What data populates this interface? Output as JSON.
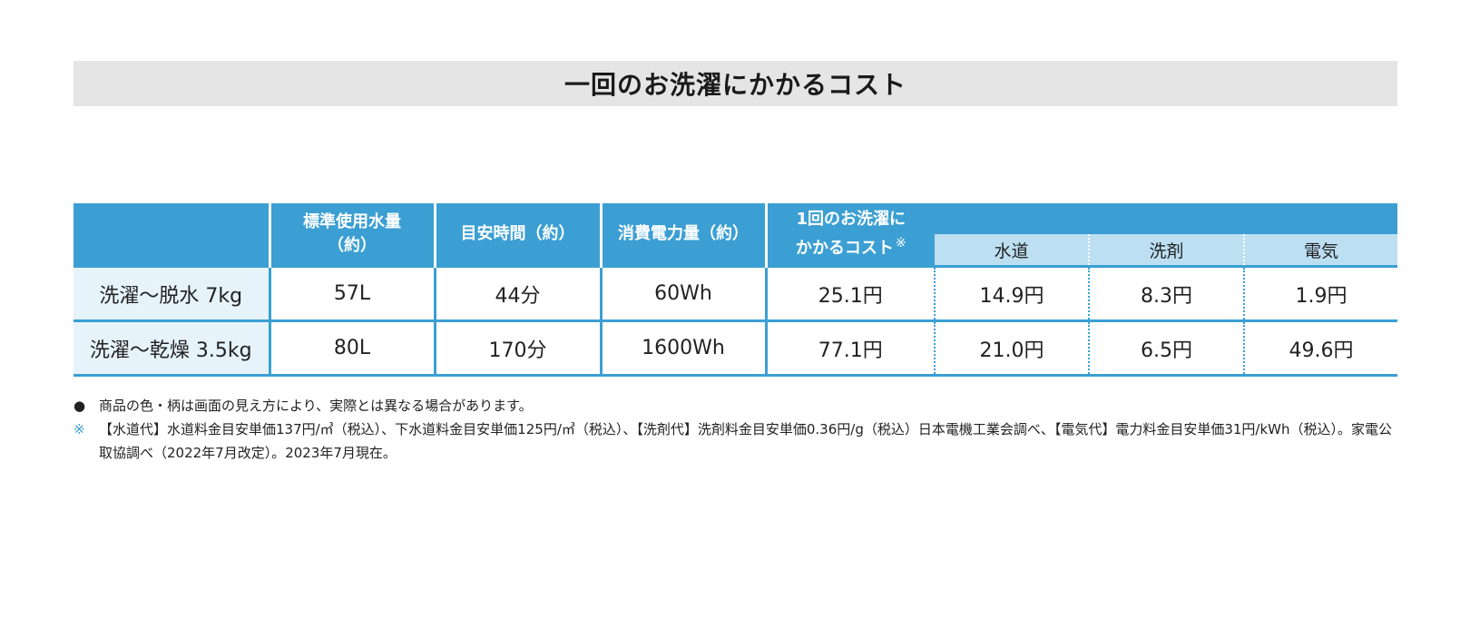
{
  "title": "一回のお洗濯にかかるコスト",
  "table": {
    "headers": {
      "water_usage": "標準使用水量\n（約）",
      "time": "目安時間（約）",
      "power": "消費電力量（約）",
      "cost_line1": "1回のお洗濯に",
      "cost_line2": "かかるコスト",
      "cost_mark": "※",
      "sub": [
        "水道",
        "洗剤",
        "電気"
      ]
    },
    "rows": [
      {
        "label": "洗濯～脱水 7kg",
        "water": "57L",
        "time": "44分",
        "power": "60Wh",
        "cost": "25.1円",
        "water_cost": "14.9円",
        "detergent_cost": "8.3円",
        "electric_cost": "1.9円"
      },
      {
        "label": "洗濯～乾燥 3.5kg",
        "water": "80L",
        "time": "170分",
        "power": "1600Wh",
        "cost": "77.1円",
        "water_cost": "21.0円",
        "detergent_cost": "6.5円",
        "electric_cost": "49.6円"
      }
    ]
  },
  "notes": [
    {
      "mark": "●",
      "text": "商品の色・柄は画面の見え方により、実際とは異なる場合があります。"
    },
    {
      "mark": "※",
      "text": "【水道代】水道料金目安単価137円/㎥（税込）、下水道料金目安単価125円/㎥（税込）、【洗剤代】洗剤料金目安単価0.36円/g（税込）日本電機工業会調べ、【電気代】電力料金目安単価31円/kWh（税込）。家電公取協調べ（2022年7月改定）。2023年7月現在。"
    }
  ],
  "colors": {
    "header_blue": "#3b9fd3",
    "sub_header_light_blue": "#bcdff2",
    "row_label_bg": "#e6f3fb",
    "title_bg": "#e5e5e5"
  }
}
